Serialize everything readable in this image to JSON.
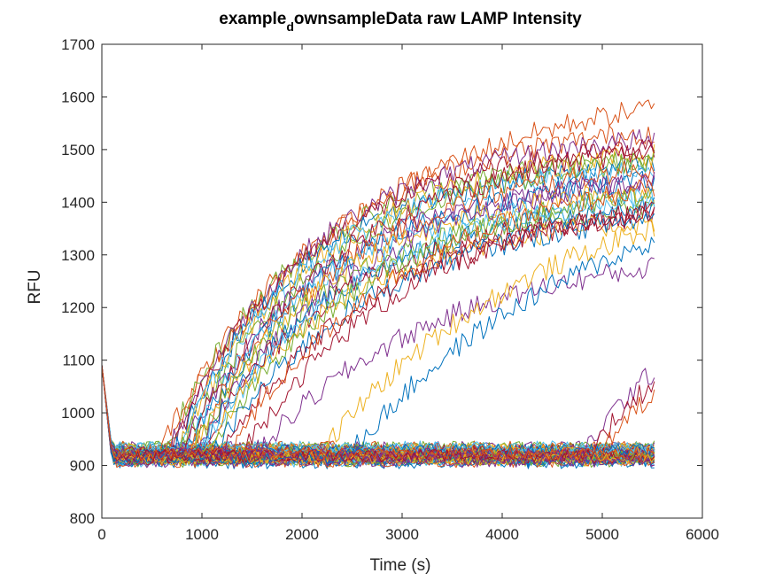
{
  "chart_data": {
    "type": "line",
    "title": {
      "prefix": "example",
      "subscript": "d",
      "suffix": "ownsampleData raw LAMP Intensity"
    },
    "xlabel": "Time (s)",
    "ylabel": "RFU",
    "xlim": [
      0,
      6000
    ],
    "ylim": [
      800,
      1700
    ],
    "xticks": [
      0,
      1000,
      2000,
      3000,
      4000,
      5000,
      6000
    ],
    "yticks": [
      800,
      900,
      1000,
      1100,
      1200,
      1300,
      1400,
      1500,
      1600,
      1700
    ],
    "grid": false,
    "legend": "none",
    "colors": [
      "#0072BD",
      "#D95319",
      "#EDB120",
      "#7E2F8E",
      "#77AC30",
      "#4DBEEE",
      "#A2142F"
    ],
    "sampling": {
      "x_start": 0,
      "x_end": 5520,
      "x_step": 30,
      "initial_spike_y": 1090,
      "initial_decay_end_x": 100,
      "noise_amplitude": 12
    },
    "amplified_series": [
      {
        "onset": 540,
        "plateau": 1640,
        "rate": 0.0005,
        "color": "#D95319"
      },
      {
        "onset": 600,
        "plateau": 1560,
        "rate": 0.00065,
        "color": "#D95319"
      },
      {
        "onset": 620,
        "plateau": 1500,
        "rate": 0.00075,
        "color": "#77AC30"
      },
      {
        "onset": 650,
        "plateau": 1540,
        "rate": 0.0007,
        "color": "#7E2F8E"
      },
      {
        "onset": 680,
        "plateau": 1520,
        "rate": 0.00072,
        "color": "#A2142F"
      },
      {
        "onset": 700,
        "plateau": 1480,
        "rate": 0.00078,
        "color": "#0072BD"
      },
      {
        "onset": 720,
        "plateau": 1510,
        "rate": 0.0007,
        "color": "#EDB120"
      },
      {
        "onset": 740,
        "plateau": 1470,
        "rate": 0.0008,
        "color": "#4DBEEE"
      },
      {
        "onset": 760,
        "plateau": 1500,
        "rate": 0.00068,
        "color": "#77AC30"
      },
      {
        "onset": 780,
        "plateau": 1450,
        "rate": 0.00075,
        "color": "#7E2F8E"
      },
      {
        "onset": 800,
        "plateau": 1530,
        "rate": 0.00062,
        "color": "#A2142F"
      },
      {
        "onset": 820,
        "plateau": 1460,
        "rate": 0.0007,
        "color": "#0072BD"
      },
      {
        "onset": 840,
        "plateau": 1420,
        "rate": 0.0008,
        "color": "#4DBEEE"
      },
      {
        "onset": 860,
        "plateau": 1490,
        "rate": 0.00066,
        "color": "#D95319"
      },
      {
        "onset": 880,
        "plateau": 1440,
        "rate": 0.00072,
        "color": "#EDB120"
      },
      {
        "onset": 900,
        "plateau": 1400,
        "rate": 0.00078,
        "color": "#77AC30"
      },
      {
        "onset": 920,
        "plateau": 1480,
        "rate": 0.0006,
        "color": "#7E2F8E"
      },
      {
        "onset": 940,
        "plateau": 1410,
        "rate": 0.0007,
        "color": "#0072BD"
      },
      {
        "onset": 960,
        "plateau": 1390,
        "rate": 0.00074,
        "color": "#A2142F"
      },
      {
        "onset": 980,
        "plateau": 1430,
        "rate": 0.00066,
        "color": "#4DBEEE"
      },
      {
        "onset": 1000,
        "plateau": 1380,
        "rate": 0.00072,
        "color": "#EDB120"
      },
      {
        "onset": 1050,
        "plateau": 1450,
        "rate": 0.0006,
        "color": "#77AC30"
      },
      {
        "onset": 1100,
        "plateau": 1400,
        "rate": 0.00062,
        "color": "#0072BD"
      },
      {
        "onset": 1150,
        "plateau": 1420,
        "rate": 0.00058,
        "color": "#A2142F"
      },
      {
        "onset": 1250,
        "plateau": 1480,
        "rate": 0.00055,
        "color": "#D95319"
      },
      {
        "onset": 1400,
        "plateau": 1430,
        "rate": 0.00058,
        "color": "#A2142F"
      },
      {
        "onset": 1550,
        "plateau": 1320,
        "rate": 0.00055,
        "color": "#7E2F8E"
      },
      {
        "onset": 2150,
        "plateau": 1470,
        "rate": 0.00045,
        "color": "#EDB120"
      },
      {
        "onset": 2450,
        "plateau": 1480,
        "rate": 0.00042,
        "color": "#0072BD"
      },
      {
        "onset": 4800,
        "plateau": 1250,
        "rate": 0.0009,
        "color": "#7E2F8E"
      },
      {
        "onset": 4850,
        "plateau": 1240,
        "rate": 0.00085,
        "color": "#A2142F"
      },
      {
        "onset": 4950,
        "plateau": 1230,
        "rate": 0.0008,
        "color": "#D95319"
      }
    ],
    "baseline_series": {
      "count": 60,
      "level_min": 905,
      "level_max": 935
    }
  }
}
